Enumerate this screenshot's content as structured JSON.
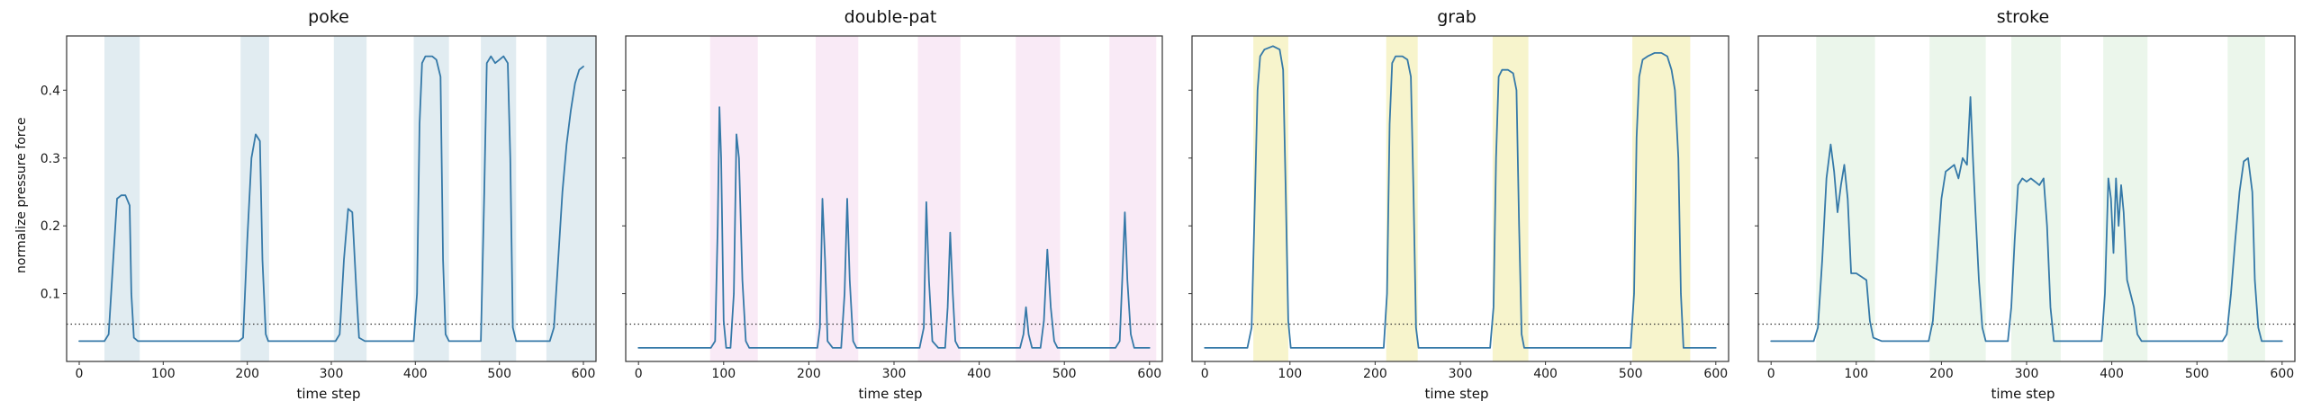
{
  "figure": {
    "background": "#ffffff",
    "line_color": "#3579a8",
    "threshold_color": "#333333"
  },
  "chart_data": [
    {
      "type": "line",
      "title": "poke",
      "xlabel": "time step",
      "ylabel": "normalize pressure force",
      "xlim": [
        -15,
        615
      ],
      "ylim": [
        0,
        0.48
      ],
      "x_ticks": [
        0,
        100,
        200,
        300,
        400,
        500,
        600
      ],
      "y_ticks": [
        0.1,
        0.2,
        0.3,
        0.4
      ],
      "show_y_tick_labels": true,
      "grid": false,
      "legend": "none",
      "line_color": "#3579a8",
      "threshold": 0.055,
      "band_color": "#a8c8d8",
      "band_opacity": 0.35,
      "bands": [
        [
          30,
          72
        ],
        [
          192,
          226
        ],
        [
          303,
          342
        ],
        [
          398,
          440
        ],
        [
          478,
          520
        ],
        [
          556,
          615
        ]
      ],
      "points": [
        [
          0,
          0.03
        ],
        [
          30,
          0.03
        ],
        [
          35,
          0.04
        ],
        [
          40,
          0.14
        ],
        [
          45,
          0.24
        ],
        [
          50,
          0.245
        ],
        [
          55,
          0.245
        ],
        [
          60,
          0.23
        ],
        [
          62,
          0.1
        ],
        [
          65,
          0.035
        ],
        [
          70,
          0.03
        ],
        [
          190,
          0.03
        ],
        [
          195,
          0.035
        ],
        [
          200,
          0.18
        ],
        [
          205,
          0.3
        ],
        [
          210,
          0.335
        ],
        [
          215,
          0.325
        ],
        [
          218,
          0.15
        ],
        [
          222,
          0.04
        ],
        [
          225,
          0.03
        ],
        [
          305,
          0.03
        ],
        [
          310,
          0.04
        ],
        [
          315,
          0.15
        ],
        [
          320,
          0.225
        ],
        [
          325,
          0.22
        ],
        [
          330,
          0.1
        ],
        [
          333,
          0.035
        ],
        [
          340,
          0.03
        ],
        [
          398,
          0.03
        ],
        [
          402,
          0.1
        ],
        [
          405,
          0.35
        ],
        [
          408,
          0.44
        ],
        [
          412,
          0.45
        ],
        [
          420,
          0.45
        ],
        [
          425,
          0.445
        ],
        [
          430,
          0.42
        ],
        [
          433,
          0.15
        ],
        [
          436,
          0.04
        ],
        [
          440,
          0.03
        ],
        [
          478,
          0.03
        ],
        [
          482,
          0.25
        ],
        [
          485,
          0.44
        ],
        [
          490,
          0.45
        ],
        [
          495,
          0.44
        ],
        [
          500,
          0.445
        ],
        [
          505,
          0.45
        ],
        [
          510,
          0.44
        ],
        [
          513,
          0.3
        ],
        [
          516,
          0.05
        ],
        [
          520,
          0.03
        ],
        [
          560,
          0.03
        ],
        [
          565,
          0.05
        ],
        [
          570,
          0.15
        ],
        [
          575,
          0.25
        ],
        [
          580,
          0.32
        ],
        [
          585,
          0.37
        ],
        [
          590,
          0.41
        ],
        [
          595,
          0.43
        ],
        [
          600,
          0.435
        ]
      ]
    },
    {
      "type": "line",
      "title": "double-pat",
      "xlabel": "time step",
      "ylabel": "",
      "xlim": [
        -15,
        615
      ],
      "ylim": [
        0,
        0.48
      ],
      "x_ticks": [
        0,
        100,
        200,
        300,
        400,
        500,
        600
      ],
      "y_ticks": [
        0.1,
        0.2,
        0.3,
        0.4
      ],
      "show_y_tick_labels": false,
      "grid": false,
      "legend": "none",
      "line_color": "#3579a8",
      "threshold": 0.055,
      "band_color": "#e8b4e0",
      "band_opacity": 0.28,
      "bands": [
        [
          84,
          140
        ],
        [
          208,
          258
        ],
        [
          328,
          378
        ],
        [
          443,
          495
        ],
        [
          553,
          608
        ]
      ],
      "points": [
        [
          0,
          0.02
        ],
        [
          85,
          0.02
        ],
        [
          90,
          0.03
        ],
        [
          93,
          0.2
        ],
        [
          95,
          0.375
        ],
        [
          97,
          0.3
        ],
        [
          100,
          0.06
        ],
        [
          103,
          0.02
        ],
        [
          108,
          0.02
        ],
        [
          112,
          0.1
        ],
        [
          115,
          0.335
        ],
        [
          118,
          0.3
        ],
        [
          122,
          0.12
        ],
        [
          126,
          0.03
        ],
        [
          130,
          0.02
        ],
        [
          210,
          0.02
        ],
        [
          213,
          0.05
        ],
        [
          216,
          0.24
        ],
        [
          219,
          0.15
        ],
        [
          222,
          0.03
        ],
        [
          228,
          0.02
        ],
        [
          238,
          0.02
        ],
        [
          242,
          0.1
        ],
        [
          245,
          0.24
        ],
        [
          248,
          0.12
        ],
        [
          252,
          0.03
        ],
        [
          256,
          0.02
        ],
        [
          330,
          0.02
        ],
        [
          335,
          0.05
        ],
        [
          338,
          0.235
        ],
        [
          341,
          0.12
        ],
        [
          345,
          0.03
        ],
        [
          352,
          0.02
        ],
        [
          360,
          0.02
        ],
        [
          363,
          0.08
        ],
        [
          366,
          0.19
        ],
        [
          369,
          0.1
        ],
        [
          372,
          0.03
        ],
        [
          376,
          0.02
        ],
        [
          448,
          0.02
        ],
        [
          452,
          0.04
        ],
        [
          455,
          0.08
        ],
        [
          458,
          0.04
        ],
        [
          462,
          0.02
        ],
        [
          472,
          0.02
        ],
        [
          476,
          0.06
        ],
        [
          480,
          0.165
        ],
        [
          484,
          0.08
        ],
        [
          488,
          0.03
        ],
        [
          492,
          0.02
        ],
        [
          560,
          0.02
        ],
        [
          565,
          0.03
        ],
        [
          568,
          0.12
        ],
        [
          571,
          0.22
        ],
        [
          574,
          0.12
        ],
        [
          578,
          0.04
        ],
        [
          582,
          0.02
        ],
        [
          600,
          0.02
        ]
      ]
    },
    {
      "type": "line",
      "title": "grab",
      "xlabel": "time step",
      "ylabel": "",
      "xlim": [
        -15,
        615
      ],
      "ylim": [
        0,
        0.48
      ],
      "x_ticks": [
        0,
        100,
        200,
        300,
        400,
        500,
        600
      ],
      "y_ticks": [
        0.1,
        0.2,
        0.3,
        0.4
      ],
      "show_y_tick_labels": false,
      "grid": false,
      "legend": "none",
      "line_color": "#3579a8",
      "threshold": 0.055,
      "band_color": "#f0ea9a",
      "band_opacity": 0.5,
      "bands": [
        [
          57,
          98
        ],
        [
          213,
          250
        ],
        [
          338,
          380
        ],
        [
          502,
          570
        ]
      ],
      "points": [
        [
          0,
          0.02
        ],
        [
          50,
          0.02
        ],
        [
          55,
          0.05
        ],
        [
          58,
          0.2
        ],
        [
          62,
          0.4
        ],
        [
          65,
          0.45
        ],
        [
          70,
          0.46
        ],
        [
          80,
          0.465
        ],
        [
          88,
          0.46
        ],
        [
          92,
          0.43
        ],
        [
          95,
          0.25
        ],
        [
          98,
          0.06
        ],
        [
          101,
          0.02
        ],
        [
          210,
          0.02
        ],
        [
          214,
          0.1
        ],
        [
          217,
          0.35
        ],
        [
          220,
          0.44
        ],
        [
          224,
          0.45
        ],
        [
          232,
          0.45
        ],
        [
          238,
          0.445
        ],
        [
          242,
          0.42
        ],
        [
          245,
          0.25
        ],
        [
          248,
          0.05
        ],
        [
          251,
          0.02
        ],
        [
          335,
          0.02
        ],
        [
          339,
          0.08
        ],
        [
          342,
          0.3
        ],
        [
          345,
          0.42
        ],
        [
          349,
          0.43
        ],
        [
          356,
          0.43
        ],
        [
          362,
          0.425
        ],
        [
          366,
          0.4
        ],
        [
          369,
          0.2
        ],
        [
          372,
          0.04
        ],
        [
          375,
          0.02
        ],
        [
          500,
          0.02
        ],
        [
          504,
          0.1
        ],
        [
          507,
          0.33
        ],
        [
          510,
          0.42
        ],
        [
          514,
          0.445
        ],
        [
          520,
          0.45
        ],
        [
          528,
          0.455
        ],
        [
          536,
          0.455
        ],
        [
          543,
          0.45
        ],
        [
          548,
          0.43
        ],
        [
          552,
          0.4
        ],
        [
          556,
          0.3
        ],
        [
          559,
          0.1
        ],
        [
          562,
          0.02
        ],
        [
          600,
          0.02
        ]
      ]
    },
    {
      "type": "line",
      "title": "stroke",
      "xlabel": "time step",
      "ylabel": "",
      "xlim": [
        -15,
        615
      ],
      "ylim": [
        0,
        0.48
      ],
      "x_ticks": [
        0,
        100,
        200,
        300,
        400,
        500,
        600
      ],
      "y_ticks": [
        0.1,
        0.2,
        0.3,
        0.4
      ],
      "show_y_tick_labels": false,
      "grid": false,
      "legend": "none",
      "line_color": "#3579a8",
      "threshold": 0.055,
      "band_color": "#b0dcb0",
      "band_opacity": 0.25,
      "bands": [
        [
          53,
          122
        ],
        [
          186,
          252
        ],
        [
          282,
          340
        ],
        [
          390,
          442
        ],
        [
          536,
          580
        ]
      ],
      "points": [
        [
          0,
          0.03
        ],
        [
          50,
          0.03
        ],
        [
          55,
          0.05
        ],
        [
          60,
          0.15
        ],
        [
          65,
          0.27
        ],
        [
          70,
          0.32
        ],
        [
          74,
          0.28
        ],
        [
          78,
          0.22
        ],
        [
          82,
          0.26
        ],
        [
          86,
          0.29
        ],
        [
          90,
          0.24
        ],
        [
          94,
          0.13
        ],
        [
          100,
          0.13
        ],
        [
          106,
          0.125
        ],
        [
          112,
          0.12
        ],
        [
          116,
          0.06
        ],
        [
          120,
          0.035
        ],
        [
          130,
          0.03
        ],
        [
          185,
          0.03
        ],
        [
          190,
          0.06
        ],
        [
          195,
          0.15
        ],
        [
          200,
          0.24
        ],
        [
          205,
          0.28
        ],
        [
          210,
          0.285
        ],
        [
          215,
          0.29
        ],
        [
          220,
          0.27
        ],
        [
          225,
          0.3
        ],
        [
          230,
          0.29
        ],
        [
          234,
          0.39
        ],
        [
          237,
          0.3
        ],
        [
          240,
          0.22
        ],
        [
          244,
          0.12
        ],
        [
          248,
          0.05
        ],
        [
          252,
          0.03
        ],
        [
          278,
          0.03
        ],
        [
          282,
          0.08
        ],
        [
          286,
          0.18
        ],
        [
          290,
          0.26
        ],
        [
          295,
          0.27
        ],
        [
          300,
          0.265
        ],
        [
          305,
          0.27
        ],
        [
          310,
          0.265
        ],
        [
          315,
          0.26
        ],
        [
          320,
          0.27
        ],
        [
          324,
          0.2
        ],
        [
          328,
          0.08
        ],
        [
          332,
          0.03
        ],
        [
          388,
          0.03
        ],
        [
          392,
          0.1
        ],
        [
          396,
          0.27
        ],
        [
          399,
          0.24
        ],
        [
          402,
          0.16
        ],
        [
          405,
          0.27
        ],
        [
          408,
          0.2
        ],
        [
          411,
          0.26
        ],
        [
          414,
          0.22
        ],
        [
          418,
          0.12
        ],
        [
          422,
          0.1
        ],
        [
          426,
          0.08
        ],
        [
          430,
          0.04
        ],
        [
          435,
          0.03
        ],
        [
          530,
          0.03
        ],
        [
          535,
          0.04
        ],
        [
          540,
          0.1
        ],
        [
          545,
          0.18
        ],
        [
          550,
          0.25
        ],
        [
          555,
          0.295
        ],
        [
          560,
          0.3
        ],
        [
          565,
          0.25
        ],
        [
          568,
          0.12
        ],
        [
          572,
          0.05
        ],
        [
          576,
          0.03
        ],
        [
          600,
          0.03
        ]
      ]
    }
  ]
}
